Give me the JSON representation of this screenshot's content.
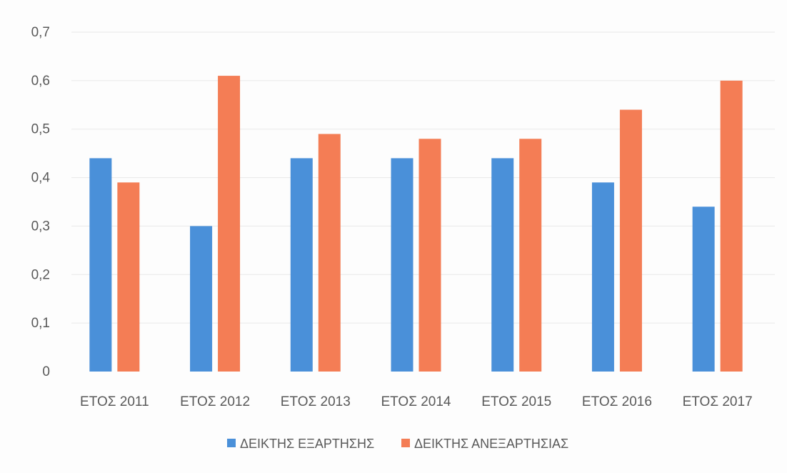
{
  "chart_data": {
    "type": "bar",
    "categories": [
      "ΕΤΟΣ 2011",
      "ΕΤΟΣ 2012",
      "ΕΤΟΣ 2013",
      "ΕΤΟΣ 2014",
      "ΕΤΟΣ 2015",
      "ΕΤΟΣ 2016",
      "ΕΤΟΣ 2017"
    ],
    "series": [
      {
        "name": "ΔΕΙΚΤΗΣ ΕΞΑΡΤΗΣΗΣ",
        "color": "#4a90d9",
        "values": [
          0.44,
          0.3,
          0.44,
          0.44,
          0.44,
          0.39,
          0.34
        ]
      },
      {
        "name": "ΔΕΙΚΤΗΣ ΑΝΕΞΑΡΤΗΣΙΑΣ",
        "color": "#f47d55",
        "values": [
          0.39,
          0.61,
          0.49,
          0.48,
          0.48,
          0.54,
          0.6
        ]
      }
    ],
    "yticks": [
      "0",
      "0,1",
      "0,2",
      "0,3",
      "0,4",
      "0,5",
      "0,6",
      "0,7"
    ],
    "ylim": [
      0,
      0.7
    ],
    "grid": true,
    "legend_position": "bottom"
  }
}
